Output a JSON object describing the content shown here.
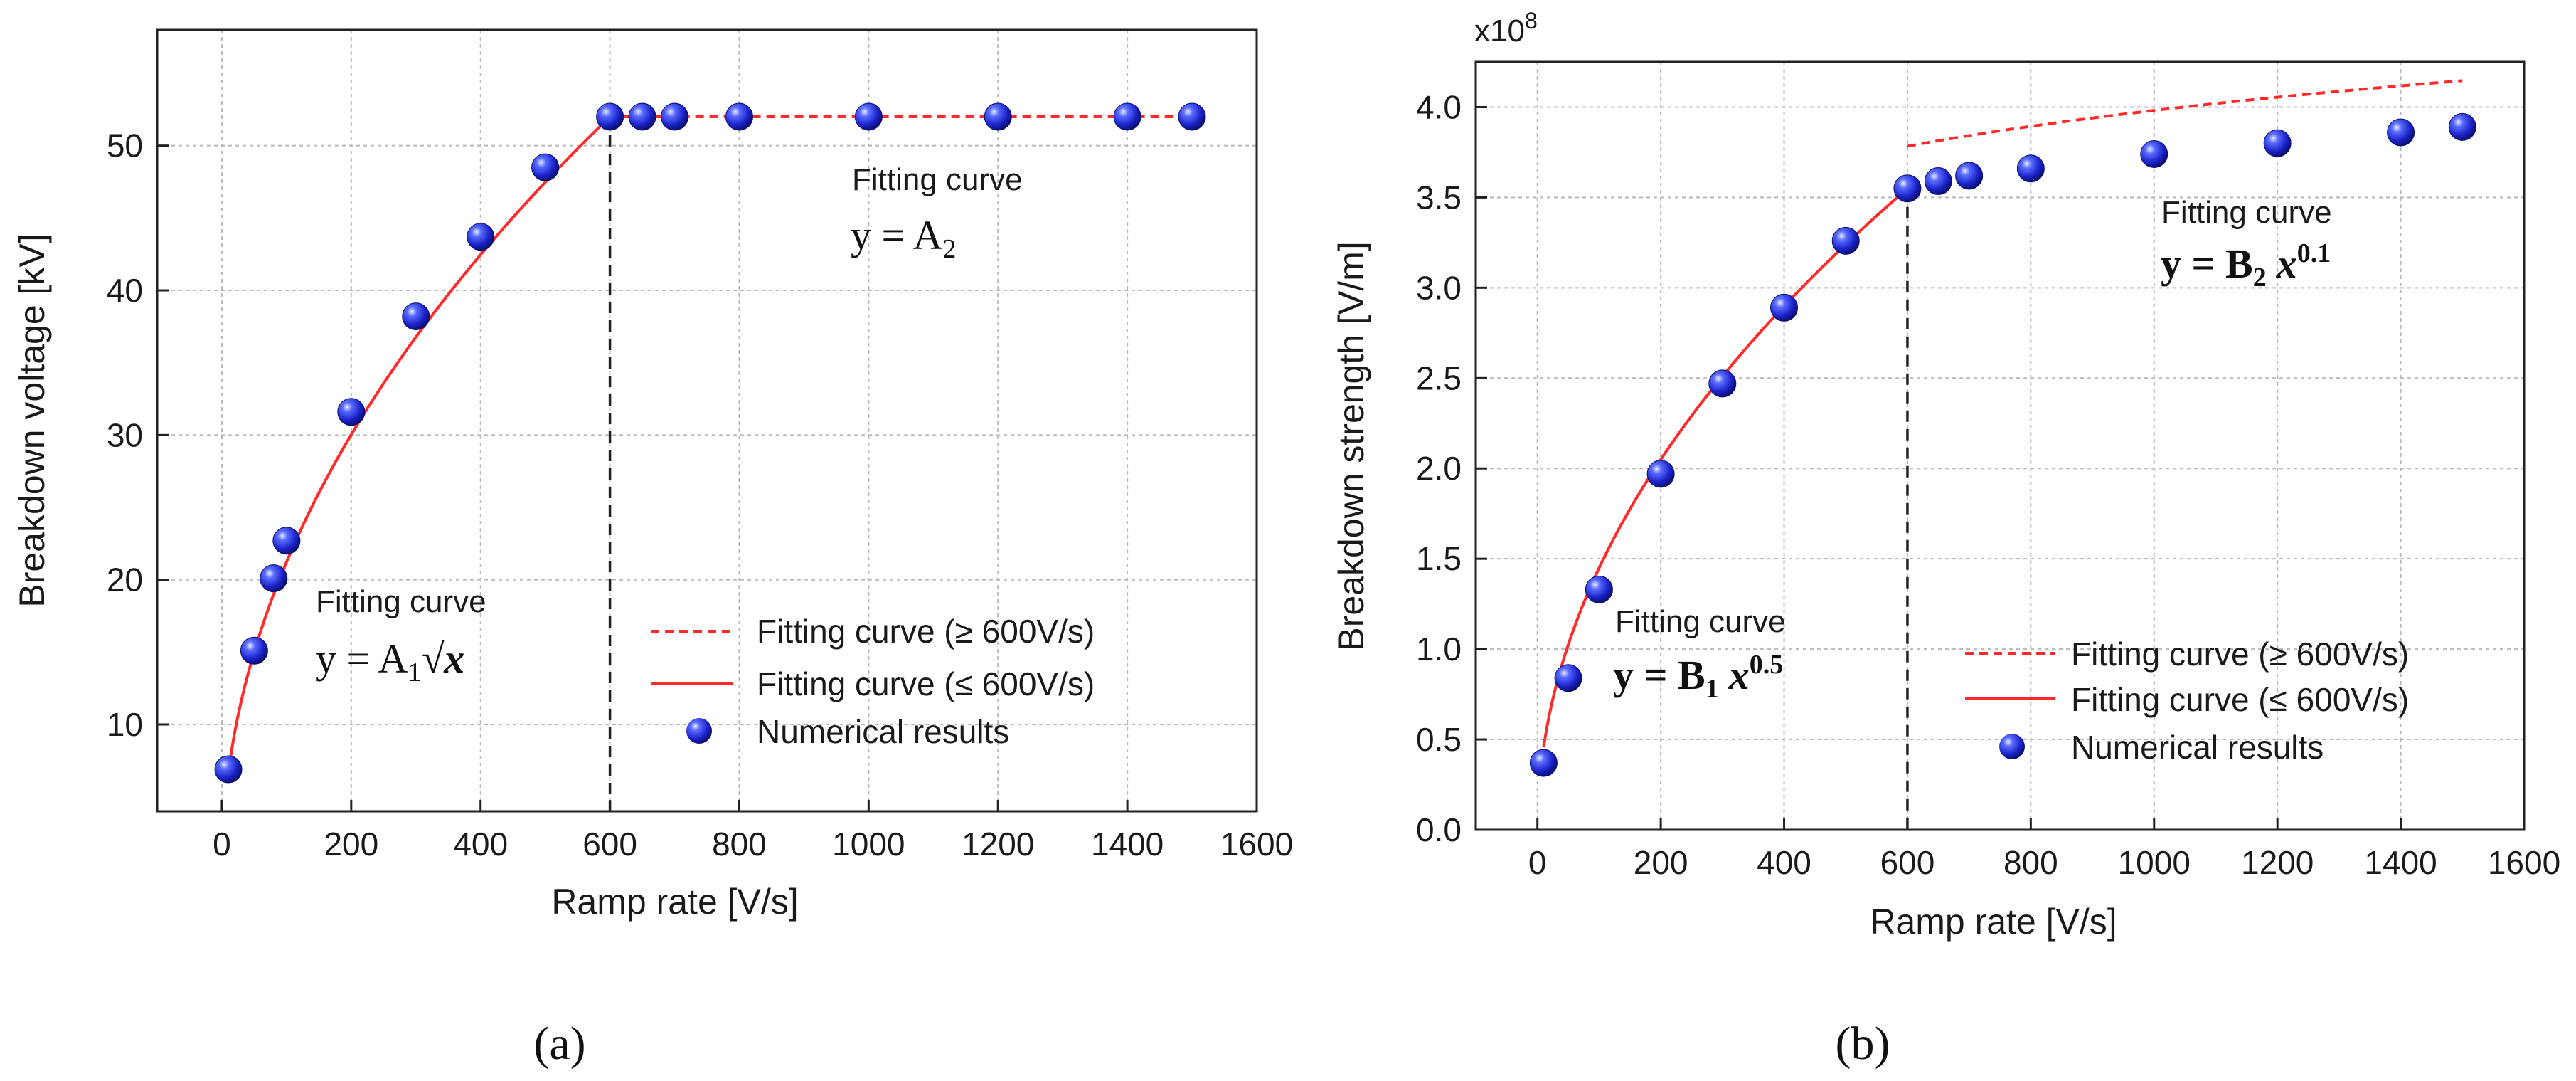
{
  "chart_data": [
    {
      "type": "scatter",
      "panel_label": "(a)",
      "xlabel": "Ramp rate [V/s]",
      "ylabel": "Breakdown voltage [kV]",
      "xlim": [
        -100,
        1600
      ],
      "ylim": [
        4,
        58
      ],
      "xticks": [
        0,
        200,
        400,
        600,
        800,
        1000,
        1200,
        1400,
        1600
      ],
      "yticks": [
        10,
        20,
        30,
        40,
        50
      ],
      "grid": true,
      "threshold_x": 600,
      "series": [
        {
          "name": "Fitting curve (≥ 600V/s)",
          "style": "dashed",
          "color": "#ff2a2a",
          "x": [
            600,
            1500
          ],
          "y": [
            52,
            52
          ]
        },
        {
          "name": "Fitting curve (≤ 600V/s)",
          "style": "solid",
          "color": "#ff2a2a",
          "model": "sqrt",
          "coef": 2.1229,
          "x_range": [
            10,
            600
          ]
        },
        {
          "name": "Numerical results",
          "style": "marker",
          "color": "#1f2fd0",
          "x": [
            10,
            50,
            80,
            100,
            200,
            300,
            400,
            500,
            600,
            650,
            700,
            800,
            1000,
            1200,
            1400,
            1500
          ],
          "y": [
            6.9,
            15.1,
            20.1,
            22.7,
            31.6,
            38.2,
            43.7,
            48.5,
            52.0,
            52.0,
            52.0,
            52.0,
            52.0,
            52.0,
            52.0,
            52.0
          ]
        }
      ],
      "annotations": [
        {
          "label": "Fitting curve",
          "equation": "y = A₂",
          "eq_main": "y = A",
          "eq_sub": "2",
          "eq_var": ""
        },
        {
          "label": "Fitting curve",
          "equation": "y = A₁√x",
          "eq_main": "y = A",
          "eq_sub": "1",
          "eq_var": "√x"
        }
      ]
    },
    {
      "type": "scatter",
      "panel_label": "(b)",
      "xlabel": "Ramp rate [V/s]",
      "ylabel": "Breakdown strength [V/m]",
      "y_multiplier": "x10",
      "y_multiplier_exp": "8",
      "xlim": [
        -100,
        1600
      ],
      "ylim": [
        0,
        4.25
      ],
      "xticks": [
        0,
        200,
        400,
        600,
        800,
        1000,
        1200,
        1400,
        1600
      ],
      "yticks": [
        0.0,
        0.5,
        1.0,
        1.5,
        2.0,
        2.5,
        3.0,
        3.5,
        4.0
      ],
      "grid": true,
      "threshold_x": 600,
      "series": [
        {
          "name": "Fitting curve (≥ 600V/s)",
          "style": "dashed",
          "color": "#ff2a2a",
          "model": "power",
          "coef": 1.9955,
          "exp": 0.1,
          "x_range": [
            600,
            1500
          ]
        },
        {
          "name": "Fitting curve (≤ 600V/s)",
          "style": "solid",
          "color": "#ff2a2a",
          "model": "power",
          "coef": 0.1449,
          "exp": 0.5,
          "x_range": [
            10,
            600
          ]
        },
        {
          "name": "Numerical results",
          "style": "marker",
          "color": "#1f2fd0",
          "x": [
            10,
            50,
            100,
            200,
            300,
            400,
            500,
            600,
            650,
            700,
            800,
            1000,
            1200,
            1400,
            1500
          ],
          "y": [
            0.37,
            0.84,
            1.33,
            1.97,
            2.47,
            2.89,
            3.26,
            3.55,
            3.59,
            3.62,
            3.66,
            3.74,
            3.8,
            3.86,
            3.89
          ]
        }
      ],
      "annotations": [
        {
          "label": "Fitting curve",
          "equation": "y = B₂ x⁰·¹",
          "eq_main": "y = B",
          "eq_sub": "2",
          "eq_var": "x",
          "eq_sup": "0.1"
        },
        {
          "label": "Fitting curve",
          "equation": "y = B₁ x⁰·⁵",
          "eq_main": "y = B",
          "eq_sub": "1",
          "eq_var": "x",
          "eq_sup": "0.5"
        }
      ]
    }
  ],
  "colors": {
    "fit": "#ff2a2a",
    "marker": "#1f2fd0",
    "grid": "#b8b8b8"
  }
}
